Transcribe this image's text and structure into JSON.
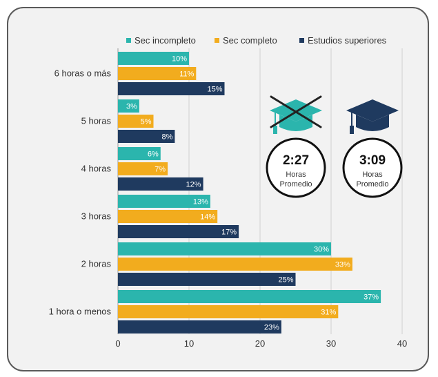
{
  "chart_data": {
    "type": "bar",
    "orientation": "horizontal",
    "categories": [
      "6 horas o más",
      "5 horas",
      "4 horas",
      "3 horas",
      "2 horas",
      "1 hora o menos"
    ],
    "series": [
      {
        "name": "Sec incompleto",
        "color": "#2bb5ad",
        "values": [
          10,
          3,
          6,
          13,
          30,
          37
        ],
        "labels": [
          "10%",
          "3%",
          "6%",
          "13%",
          "30%",
          "37%"
        ]
      },
      {
        "name": "Sec completo",
        "color": "#f2ac1e",
        "values": [
          11,
          5,
          7,
          14,
          33,
          31
        ],
        "labels": [
          "11%",
          "5%",
          "7%",
          "14%",
          "33%",
          "31%"
        ]
      },
      {
        "name": "Estudios superiores",
        "color": "#1f3a5f",
        "values": [
          15,
          8,
          12,
          17,
          25,
          23
        ],
        "labels": [
          "15%",
          "8%",
          "12%",
          "17%",
          "25%",
          "23%"
        ]
      }
    ],
    "xlim": [
      0,
      40
    ],
    "xticks": [
      "0",
      "10",
      "20",
      "30",
      "40"
    ],
    "grid": true,
    "legend_position": "top"
  },
  "badges": [
    {
      "icon": "crossed-graduation-cap-icon",
      "time": "2:27",
      "line1": "Horas",
      "line2": "Promedio"
    },
    {
      "icon": "graduation-cap-icon",
      "time": "3:09",
      "line1": "Horas",
      "line2": "Promedio"
    }
  ]
}
